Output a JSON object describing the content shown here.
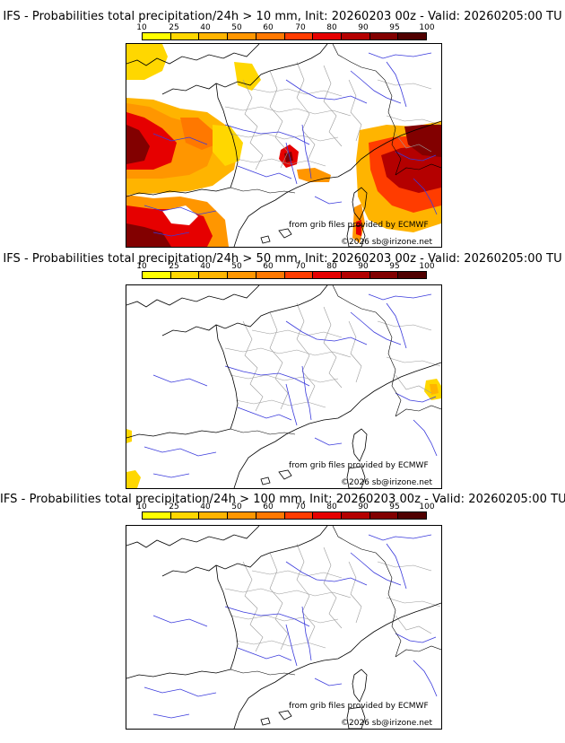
{
  "colorbar": {
    "ticks": [
      "10",
      "25",
      "40",
      "50",
      "60",
      "70",
      "80",
      "90",
      "95",
      "100"
    ],
    "colors": [
      "#ffff00",
      "#ffd700",
      "#ffb400",
      "#ff9600",
      "#ff7800",
      "#ff3c00",
      "#e60000",
      "#b40000",
      "#820000",
      "#500000"
    ]
  },
  "credits": {
    "source": "from grib files provided by ECMWF",
    "copyright": "©2026 sb@irizone.net"
  },
  "panels": [
    {
      "title": "IFS - Probabilities total precipitation/24h > 10 mm, Init: 20260203 00z - Valid: 20260205:00 TU",
      "threshold_mm": 10
    },
    {
      "title": "IFS - Probabilities total precipitation/24h > 50 mm, Init: 20260203 00z - Valid: 20260205:00 TU",
      "threshold_mm": 50
    },
    {
      "title": "IFS - Probabilities total precipitation/24h > 100 mm, Init: 20260203 00z - Valid: 20260205:00 TU",
      "threshold_mm": 100
    }
  ]
}
